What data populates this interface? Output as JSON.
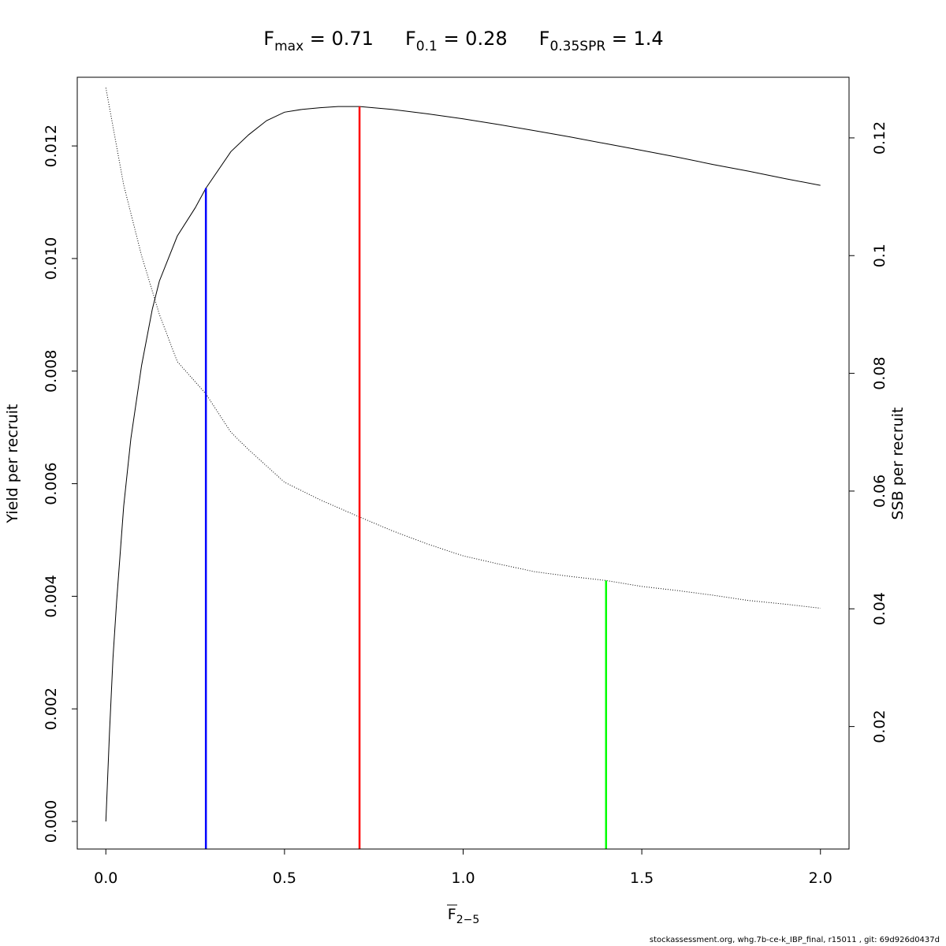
{
  "chart_data": {
    "type": "line",
    "title_parts": [
      {
        "main": "F",
        "sub": "max",
        "rest": " = 0.71"
      },
      {
        "main": "F",
        "sub": "0.1",
        "rest": " = 0.28"
      },
      {
        "main": "F",
        "sub": "0.35SPR",
        "rest": " = 1.4"
      }
    ],
    "xlabel_main": "F",
    "xlabel_sub": "2−5",
    "ylabel_left": "Yield per recruit",
    "ylabel_right": "SSB per recruit",
    "xlim": [
      -0.08,
      2.08
    ],
    "ylim_left": [
      -0.00049,
      0.01322
    ],
    "ylim_right": [
      -0.00081,
      0.1303
    ],
    "x_ticks": [
      0.0,
      0.5,
      1.0,
      1.5,
      2.0
    ],
    "x_tick_labels": [
      "0.0",
      "0.5",
      "1.0",
      "1.5",
      "2.0"
    ],
    "y_left_ticks": [
      0.0,
      0.002,
      0.004,
      0.006,
      0.008,
      0.01,
      0.012
    ],
    "y_left_tick_labels": [
      "0.000",
      "0.002",
      "0.004",
      "0.006",
      "0.008",
      "0.010",
      "0.012"
    ],
    "y_right_ticks": [
      0.02,
      0.04,
      0.06,
      0.08,
      0.1,
      0.12
    ],
    "y_right_tick_labels": [
      "0.02",
      "0.04",
      "0.06",
      "0.08",
      "0.1",
      "0.12"
    ],
    "grid": false,
    "series": [
      {
        "key": "ypr",
        "axis": "left",
        "style": "solid",
        "color": "#000000",
        "x": [
          0.0,
          0.01,
          0.02,
          0.03,
          0.05,
          0.07,
          0.1,
          0.13,
          0.15,
          0.2,
          0.25,
          0.28,
          0.35,
          0.4,
          0.45,
          0.5,
          0.55,
          0.6,
          0.65,
          0.71,
          0.8,
          0.9,
          1.0,
          1.1,
          1.2,
          1.3,
          1.4,
          1.5,
          1.6,
          1.7,
          1.8,
          1.9,
          2.0
        ],
        "y": [
          0.0,
          0.00155,
          0.0029,
          0.0039,
          0.0056,
          0.0068,
          0.0081,
          0.0091,
          0.0096,
          0.0104,
          0.0109,
          0.01125,
          0.0119,
          0.0122,
          0.01245,
          0.0126,
          0.01265,
          0.01268,
          0.0127,
          0.0127,
          0.01265,
          0.01257,
          0.01248,
          0.01238,
          0.01227,
          0.01216,
          0.01204,
          0.01192,
          0.0118,
          0.01167,
          0.01155,
          0.01142,
          0.0113
        ]
      },
      {
        "key": "spr",
        "axis": "right",
        "style": "dotted",
        "color": "#000000",
        "x": [
          0.0,
          0.05,
          0.1,
          0.15,
          0.2,
          0.28,
          0.35,
          0.4,
          0.5,
          0.6,
          0.71,
          0.8,
          0.9,
          1.0,
          1.1,
          1.2,
          1.3,
          1.4,
          1.5,
          1.6,
          1.7,
          1.8,
          1.9,
          2.0
        ],
        "y": [
          0.1285,
          0.112,
          0.1,
          0.09,
          0.082,
          0.0765,
          0.07,
          0.067,
          0.0615,
          0.0585,
          0.0556,
          0.0533,
          0.051,
          0.049,
          0.0476,
          0.0463,
          0.0455,
          0.0448,
          0.0438,
          0.0431,
          0.0423,
          0.0414,
          0.0408,
          0.0401
        ]
      }
    ],
    "reference_lines": [
      {
        "key": "f01",
        "x": 0.28,
        "to_axis": "left",
        "y_top": 0.01125,
        "color": "#0000ff"
      },
      {
        "key": "fmax",
        "x": 0.71,
        "to_axis": "left",
        "y_top": 0.0127,
        "color": "#ff0000"
      },
      {
        "key": "f035spr",
        "x": 1.4,
        "to_axis": "right",
        "y_top": 0.0448,
        "color": "#00ff00"
      }
    ]
  },
  "footer": {
    "credit": "stockassessment.org, whg.7b-ce-k_IBP_final, r15011 , git: 69d926d0437d"
  }
}
